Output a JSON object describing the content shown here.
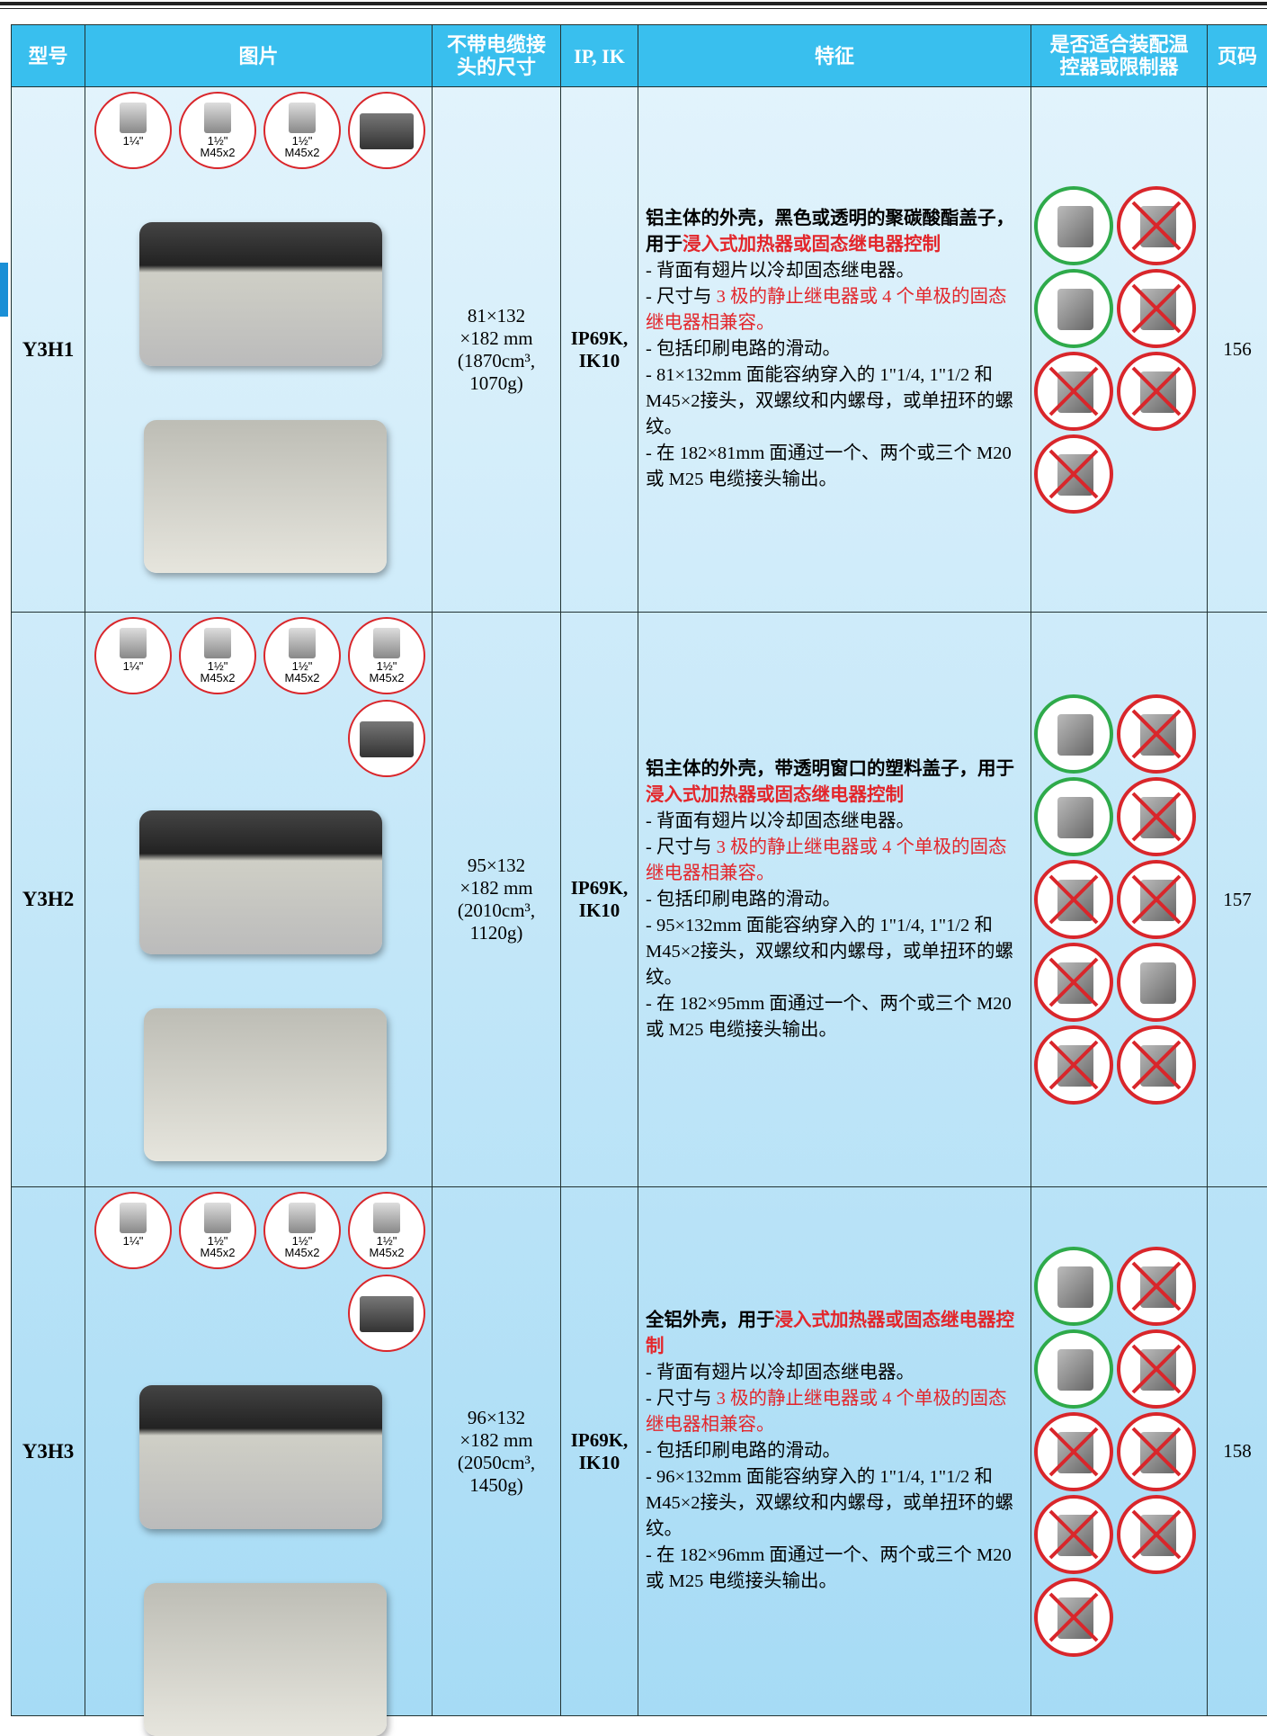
{
  "header": {
    "columns": [
      [
        "型号"
      ],
      [
        "图片"
      ],
      [
        "不带电缆接",
        "头的尺寸"
      ],
      [
        "IP, IK"
      ],
      [
        "特征"
      ],
      [
        "是否适合装配温",
        "控器或限制器"
      ],
      [
        "页码"
      ]
    ]
  },
  "table": {
    "rows": [
      {
        "model": "Y3H1",
        "thumbnails": [
          [
            "1¼\""
          ],
          [
            "1½\"",
            "M45x2"
          ],
          [
            "1½\"",
            "M45x2"
          ],
          null
        ],
        "dimensions": [
          "81×132",
          "×182 mm",
          "(1870cm³,",
          "1070g)"
        ],
        "ip": [
          "IP69K,",
          "IK10"
        ],
        "lead": [
          {
            "text": "铝主体的外壳，黑色或透明的聚碳酸酯盖子，用于",
            "color": "black"
          },
          {
            "text": "浸入式加热器或固态继电器控制",
            "color": "red"
          }
        ],
        "features": [
          [
            {
              "text": "- 背面有翅片以冷却固态继电器。",
              "color": "black"
            }
          ],
          [
            {
              "text": "- 尺寸与 ",
              "color": "black"
            },
            {
              "text": "3 极的静止继电器或 4 个单极的固态继电器相兼容。",
              "color": "red"
            }
          ],
          [
            {
              "text": "- 包括印刷电路的滑动。",
              "color": "black"
            }
          ],
          [
            {
              "text": "- 81×132mm 面能容纳穿入的 1\"1/4, 1\"1/2 和M45×2接头，双螺纹和内螺母，或单扭环的螺纹。",
              "color": "black"
            }
          ],
          [
            {
              "text": "- 在 182×81mm 面通过一个、两个或三个 M20 或 M25 电缆接头输出。",
              "color": "black"
            }
          ]
        ],
        "page": "156"
      },
      {
        "model": "Y3H2",
        "thumbnails": [
          [
            "1¼\""
          ],
          [
            "1½\"",
            "M45x2"
          ],
          [
            "1½\"",
            "M45x2"
          ],
          [
            "1½\"",
            "M45x2"
          ],
          null
        ],
        "dimensions": [
          "95×132",
          "×182 mm",
          "(2010cm³,",
          "1120g)"
        ],
        "ip": [
          "IP69K,",
          "IK10"
        ],
        "lead": [
          {
            "text": "铝主体的外壳，带透明窗口的塑料盖子，用于",
            "color": "black"
          },
          {
            "text": "浸入式加热器或固态继电器控制",
            "color": "red"
          }
        ],
        "features": [
          [
            {
              "text": "- 背面有翅片以冷却固态继电器。",
              "color": "black"
            }
          ],
          [
            {
              "text": "- 尺寸与 ",
              "color": "black"
            },
            {
              "text": "3 极的静止继电器或 4 个单极的固态继电器相兼容。",
              "color": "red"
            }
          ],
          [
            {
              "text": "- 包括印刷电路的滑动。",
              "color": "black"
            }
          ],
          [
            {
              "text": "- 95×132mm 面能容纳穿入的 1\"1/4, 1\"1/2 和M45×2接头，双螺纹和内螺母，或单扭环的螺纹。",
              "color": "black"
            }
          ],
          [
            {
              "text": "- 在 182×95mm 面通过一个、两个或三个 M20 或 M25 电缆接头输出。",
              "color": "black"
            }
          ]
        ],
        "page": "157"
      },
      {
        "model": "Y3H3",
        "thumbnails": [
          [
            "1¼\""
          ],
          [
            "1½\"",
            "M45x2"
          ],
          [
            "1½\"",
            "M45x2"
          ],
          [
            "1½\"",
            "M45x2"
          ],
          null
        ],
        "dimensions": [
          "96×132",
          "×182 mm",
          "(2050cm³,",
          "1450g)"
        ],
        "ip": [
          "IP69K,",
          "IK10"
        ],
        "lead": [
          {
            "text": "全铝外壳，用于",
            "color": "black"
          },
          {
            "text": "浸入式加热器或固态继电器控制",
            "color": "red"
          }
        ],
        "features": [
          [
            {
              "text": "- 背面有翅片以冷却固态继电器。",
              "color": "black"
            }
          ],
          [
            {
              "text": "- 尺寸与 ",
              "color": "black"
            },
            {
              "text": "3 极的静止继电器或 4 个单极的固态继电器相兼容。",
              "color": "red"
            }
          ],
          [
            {
              "text": "- 包括印刷电路的滑动。",
              "color": "black"
            }
          ],
          [
            {
              "text": "- 96×132mm 面能容纳穿入的 1\"1/4, 1\"1/2 和M45×2接头，双螺纹和内螺母，或单扭环的螺纹。",
              "color": "black"
            }
          ],
          [
            {
              "text": "- 在 182×96mm 面通过一个、两个或三个 M20 或 M25 电缆接头输出。",
              "color": "black"
            }
          ]
        ],
        "page": "158"
      }
    ]
  }
}
